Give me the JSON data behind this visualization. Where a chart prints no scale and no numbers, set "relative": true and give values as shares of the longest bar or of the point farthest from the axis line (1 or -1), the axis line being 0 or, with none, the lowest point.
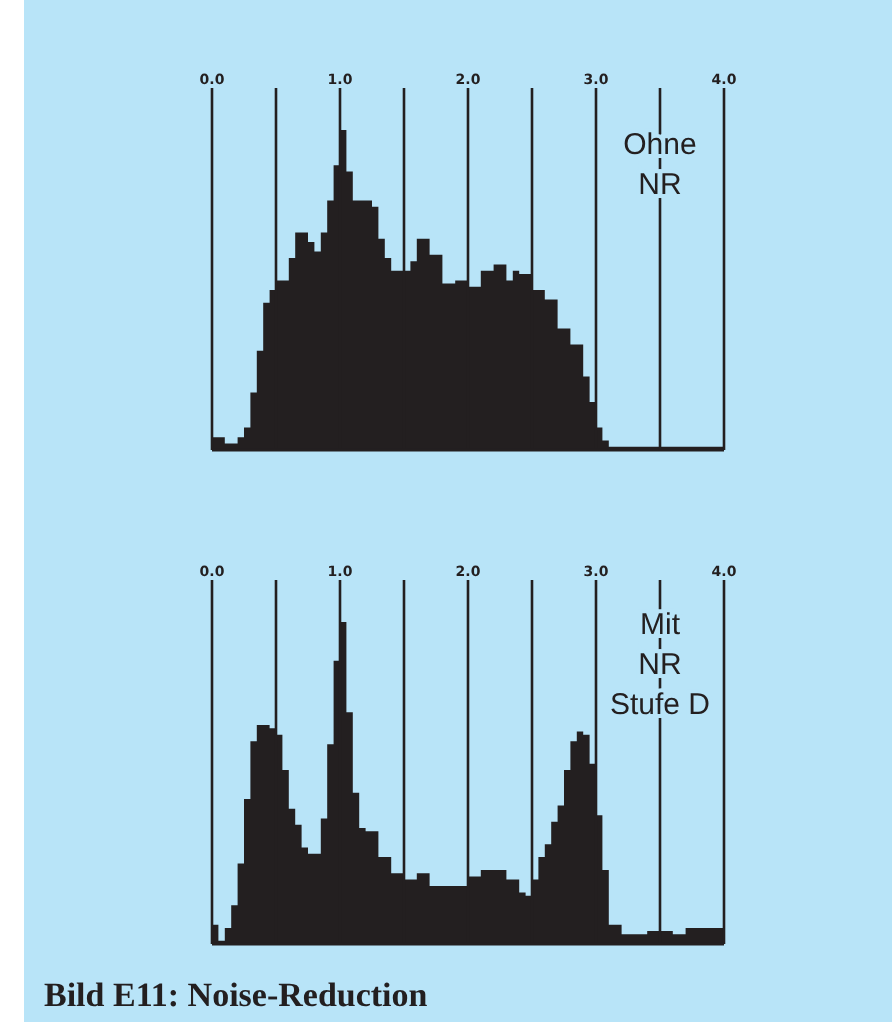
{
  "chart_data": [
    {
      "type": "area",
      "relative": true,
      "grid": "x",
      "xlim": [
        0,
        4
      ],
      "xticks": [
        {
          "value": 0,
          "label": "0.0"
        },
        {
          "value": 0.5,
          "label": null
        },
        {
          "value": 1,
          "label": "1.0"
        },
        {
          "value": 1.5,
          "label": null
        },
        {
          "value": 2,
          "label": "2.0"
        },
        {
          "value": 2.5,
          "label": null
        },
        {
          "value": 3,
          "label": "3.0"
        },
        {
          "value": 3.5,
          "label": null
        },
        {
          "value": 4,
          "label": "4.0"
        }
      ],
      "annotations": [
        "Ohne\nNR"
      ],
      "series": [
        {
          "color": "#231f20",
          "x": [
            0,
            0.1,
            0.2,
            0.25,
            0.3,
            0.35,
            0.4,
            0.45,
            0.5,
            0.6,
            0.65,
            0.7,
            0.75,
            0.8,
            0.85,
            0.9,
            0.95,
            1,
            1.05,
            1.1,
            1.2,
            1.25,
            1.3,
            1.35,
            1.4,
            1.5,
            1.55,
            1.6,
            1.7,
            1.8,
            1.9,
            2,
            2.1,
            2.2,
            2.3,
            2.35,
            2.4,
            2.5,
            2.6,
            2.7,
            2.8,
            2.9,
            2.95,
            3,
            3.05,
            3.1,
            3.5,
            3.9,
            4
          ],
          "values": [
            0.04,
            0.02,
            0.04,
            0.07,
            0.18,
            0.31,
            0.46,
            0.5,
            0.53,
            0.6,
            0.68,
            0.68,
            0.65,
            0.62,
            0.68,
            0.78,
            0.89,
            1,
            0.87,
            0.78,
            0.78,
            0.76,
            0.66,
            0.6,
            0.56,
            0.56,
            0.59,
            0.66,
            0.61,
            0.52,
            0.53,
            0.51,
            0.56,
            0.58,
            0.53,
            0.56,
            0.55,
            0.5,
            0.47,
            0.38,
            0.33,
            0.23,
            0.15,
            0.07,
            0.03,
            0.01,
            0.01,
            0.01,
            0.02
          ]
        }
      ]
    },
    {
      "type": "area",
      "relative": true,
      "grid": "x",
      "xlim": [
        0,
        4
      ],
      "xticks": [
        {
          "value": 0,
          "label": "0.0"
        },
        {
          "value": 0.5,
          "label": null
        },
        {
          "value": 1,
          "label": "1.0"
        },
        {
          "value": 1.5,
          "label": null
        },
        {
          "value": 2,
          "label": "2.0"
        },
        {
          "value": 2.5,
          "label": null
        },
        {
          "value": 3,
          "label": "3.0"
        },
        {
          "value": 3.5,
          "label": null
        },
        {
          "value": 4,
          "label": "4.0"
        }
      ],
      "annotations": [
        "Mit\nNR\nStufe D",
        "Bild E11: Noise-Reduction"
      ],
      "series": [
        {
          "color": "#231f20",
          "x": [
            0,
            0.05,
            0.1,
            0.15,
            0.2,
            0.25,
            0.3,
            0.35,
            0.4,
            0.45,
            0.5,
            0.55,
            0.6,
            0.65,
            0.7,
            0.75,
            0.8,
            0.85,
            0.9,
            0.95,
            1,
            1.05,
            1.1,
            1.15,
            1.2,
            1.25,
            1.3,
            1.4,
            1.5,
            1.6,
            1.7,
            1.8,
            1.9,
            2,
            2.1,
            2.2,
            2.3,
            2.4,
            2.45,
            2.5,
            2.55,
            2.6,
            2.65,
            2.7,
            2.75,
            2.8,
            2.85,
            2.9,
            2.95,
            3,
            3.05,
            3.1,
            3.2,
            3.4,
            3.6,
            3.7,
            4
          ],
          "values": [
            0.06,
            0.01,
            0.05,
            0.12,
            0.25,
            0.45,
            0.63,
            0.68,
            0.68,
            0.67,
            0.65,
            0.54,
            0.42,
            0.37,
            0.3,
            0.28,
            0.28,
            0.39,
            0.62,
            0.88,
            1,
            0.72,
            0.47,
            0.36,
            0.35,
            0.35,
            0.27,
            0.22,
            0.2,
            0.22,
            0.18,
            0.18,
            0.18,
            0.21,
            0.23,
            0.23,
            0.2,
            0.16,
            0.15,
            0.2,
            0.27,
            0.31,
            0.38,
            0.43,
            0.54,
            0.63,
            0.66,
            0.65,
            0.56,
            0.4,
            0.23,
            0.06,
            0.03,
            0.04,
            0.03,
            0.05,
            0.05
          ]
        }
      ]
    }
  ]
}
